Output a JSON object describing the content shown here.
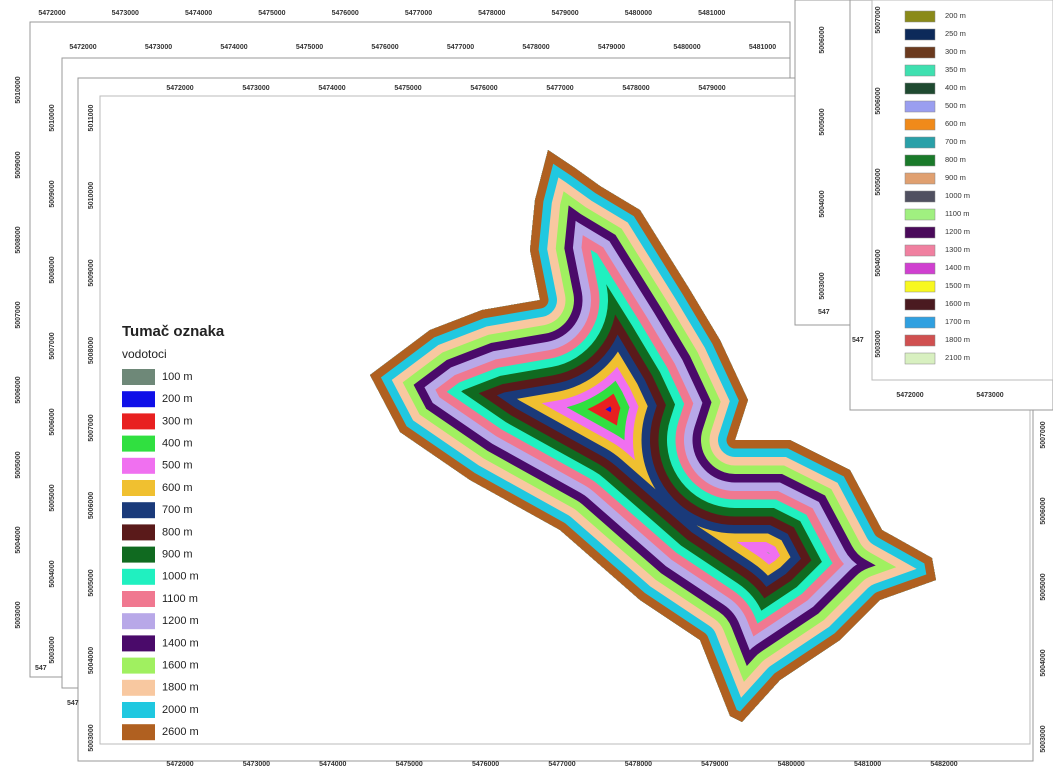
{
  "front_map": {
    "top_ticks": [
      "5472000",
      "5473000",
      "5474000",
      "5475000",
      "5476000",
      "5477000",
      "5478000",
      "5479000"
    ],
    "bottom_ticks": [
      "5472000",
      "5473000",
      "5474000",
      "5475000",
      "5476000",
      "5477000",
      "5478000",
      "5479000",
      "5480000",
      "5481000",
      "5482000"
    ],
    "left_ticks": [
      "5011000",
      "5010000",
      "5009000",
      "5008000",
      "5007000",
      "5006000",
      "5005000",
      "5004000",
      "5003000"
    ],
    "right_ticks": [
      "5007000",
      "5006000",
      "5005000",
      "5004000",
      "5003000"
    ],
    "legend": {
      "title": "Tumač oznaka",
      "subtitle": "vodotoci",
      "items": [
        {
          "label": "100 m",
          "color": "#6e8878"
        },
        {
          "label": "200 m",
          "color": "#1010e8"
        },
        {
          "label": "300 m",
          "color": "#e82020"
        },
        {
          "label": "400 m",
          "color": "#30e040"
        },
        {
          "label": "500 m",
          "color": "#f070f0"
        },
        {
          "label": "600 m",
          "color": "#f0c030"
        },
        {
          "label": "700 m",
          "color": "#1a3a7a"
        },
        {
          "label": "800 m",
          "color": "#5a1a1a"
        },
        {
          "label": "900 m",
          "color": "#106a20"
        },
        {
          "label": "1000 m",
          "color": "#20f0c0"
        },
        {
          "label": "1100 m",
          "color": "#f07890"
        },
        {
          "label": "1200 m",
          "color": "#b8a8e8"
        },
        {
          "label": "1400 m",
          "color": "#4a0a6a"
        },
        {
          "label": "1600 m",
          "color": "#a0f060"
        },
        {
          "label": "1800 m",
          "color": "#f8c8a0"
        },
        {
          "label": "2000 m",
          "color": "#20c8e0"
        },
        {
          "label": "2600 m",
          "color": "#b06020"
        }
      ]
    }
  },
  "middle_map": {
    "top_ticks": [
      "5472000",
      "5473000",
      "5474000",
      "5475000",
      "5476000",
      "5477000",
      "5478000",
      "5479000",
      "5480000",
      "5481000"
    ],
    "left_ticks": [
      "5010000",
      "5009000",
      "5008000",
      "5007000",
      "5006000",
      "5005000",
      "5004000",
      "5003000"
    ],
    "corner_label": "547"
  },
  "outer_map": {
    "top_ticks": [
      "5472000",
      "5473000",
      "5474000",
      "5475000",
      "5476000",
      "5477000",
      "5478000",
      "5479000",
      "5480000",
      "5481000"
    ],
    "left_ticks": [
      "5010000",
      "5009000",
      "5008000",
      "5007000",
      "5006000",
      "5005000",
      "5004000",
      "5003000"
    ],
    "corner_label": "547"
  },
  "right_back_map": {
    "left_ticks": [
      "5006000",
      "5005000",
      "5004000",
      "5003000"
    ],
    "corner_label": "547"
  },
  "right_map": {
    "left_ticks": [
      "5007000",
      "5006000",
      "5005000",
      "5004000",
      "5003000"
    ],
    "bottom_ticks": [
      "5472000",
      "5473000"
    ],
    "corner_label": "547",
    "legend_items": [
      {
        "label": "200 m",
        "color": "#8a8a1a"
      },
      {
        "label": "250 m",
        "color": "#0d2a5a"
      },
      {
        "label": "300 m",
        "color": "#6b3a1e"
      },
      {
        "label": "350 m",
        "color": "#3fe0b0"
      },
      {
        "label": "400 m",
        "color": "#1f4a30"
      },
      {
        "label": "500 m",
        "color": "#9a9ef0"
      },
      {
        "label": "600 m",
        "color": "#f08a1a"
      },
      {
        "label": "700 m",
        "color": "#2aa0a8"
      },
      {
        "label": "800 m",
        "color": "#1a7a2a"
      },
      {
        "label": "900 m",
        "color": "#e0a070"
      },
      {
        "label": "1000 m",
        "color": "#505060"
      },
      {
        "label": "1100 m",
        "color": "#a0f080"
      },
      {
        "label": "1200 m",
        "color": "#4a0a5a"
      },
      {
        "label": "1300 m",
        "color": "#f080a0"
      },
      {
        "label": "1400 m",
        "color": "#d040d0"
      },
      {
        "label": "1500 m",
        "color": "#f8f820"
      },
      {
        "label": "1600 m",
        "color": "#4a1a20"
      },
      {
        "label": "1700 m",
        "color": "#30a0e0"
      },
      {
        "label": "1800 m",
        "color": "#d05050"
      },
      {
        "label": "2100 m",
        "color": "#d8f0c0"
      }
    ]
  }
}
